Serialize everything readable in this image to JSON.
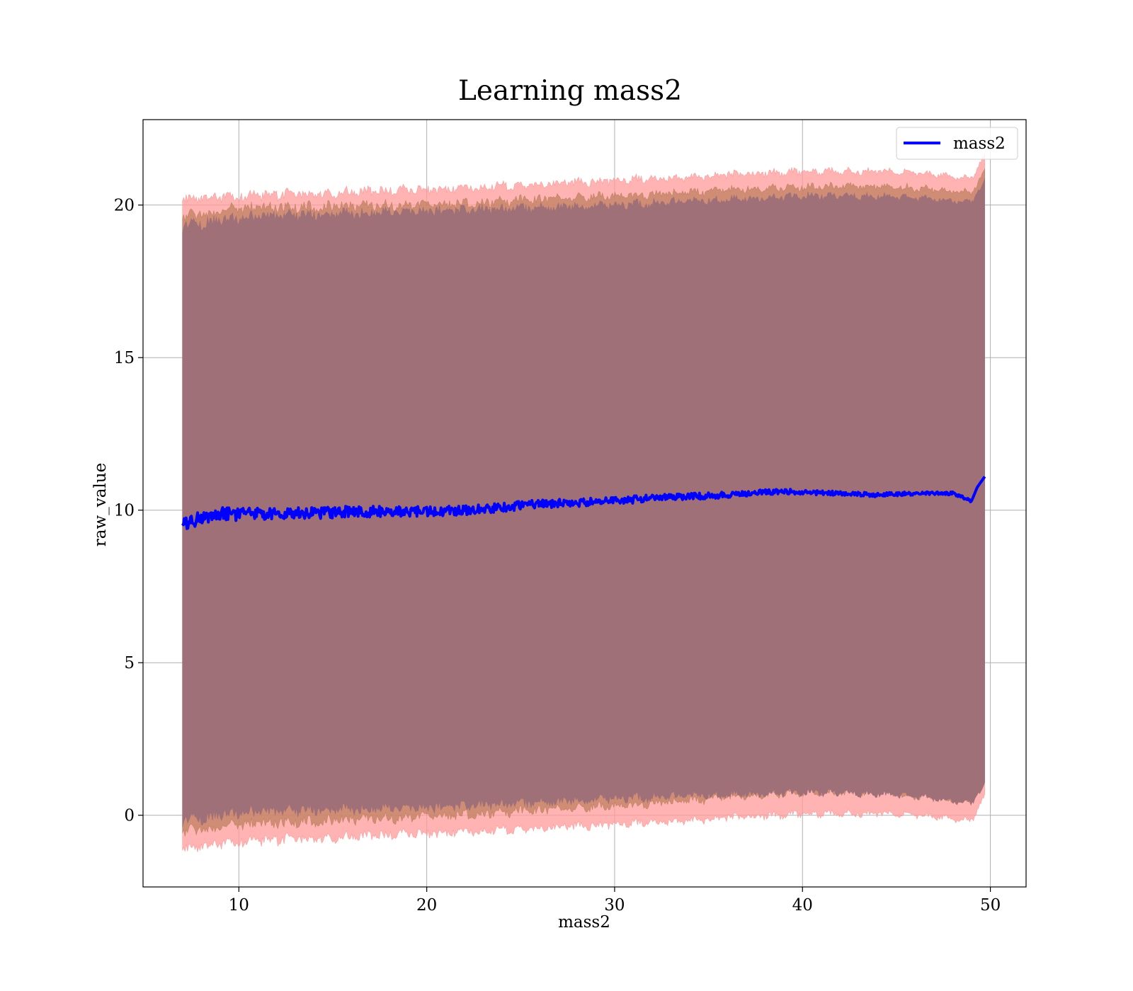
{
  "chart_data": {
    "type": "line",
    "title": "Learning mass2",
    "xlabel": "mass2",
    "ylabel": "raw_value",
    "xlim": [
      4.9,
      51.9
    ],
    "ylim": [
      -2.35,
      22.8
    ],
    "xticks": [
      10,
      20,
      30,
      40,
      50
    ],
    "yticks": [
      0,
      5,
      10,
      15,
      20
    ],
    "xtick_labels": [
      "10",
      "20",
      "30",
      "40",
      "50"
    ],
    "ytick_labels": [
      "0",
      "5",
      "10",
      "15",
      "20"
    ],
    "grid": true,
    "legend": {
      "placement": "top-right",
      "entries": [
        "mass2"
      ]
    },
    "series": [
      {
        "name": "mass2",
        "role": "mean line",
        "color": "#0000ff",
        "x": [
          7.0,
          8.0,
          9.0,
          10.0,
          12.0,
          14.0,
          16.0,
          18.0,
          20.0,
          22.0,
          24.0,
          26.0,
          28.0,
          30.0,
          32.0,
          34.0,
          36.0,
          38.0,
          40.0,
          42.0,
          44.0,
          46.0,
          48.0,
          49.0,
          49.3,
          49.7
        ],
        "y": [
          9.55,
          9.75,
          9.9,
          9.85,
          9.9,
          9.9,
          9.95,
          9.95,
          9.95,
          10.0,
          10.1,
          10.2,
          10.25,
          10.3,
          10.4,
          10.45,
          10.5,
          10.6,
          10.6,
          10.55,
          10.5,
          10.55,
          10.55,
          10.3,
          10.75,
          11.1
        ]
      }
    ],
    "bands": [
      {
        "role": "outer band",
        "color": "#ff9999",
        "x": [
          7.0,
          10.0,
          20.0,
          30.0,
          40.0,
          45.0,
          49.0,
          49.7
        ],
        "upper": [
          20.2,
          20.3,
          20.5,
          20.8,
          21.1,
          21.1,
          20.9,
          21.6
        ],
        "lower": [
          -1.1,
          -0.85,
          -0.6,
          -0.3,
          0.05,
          0.05,
          -0.15,
          0.6
        ]
      },
      {
        "role": "middle band",
        "color": "#c08060",
        "x": [
          7.0,
          10.0,
          20.0,
          30.0,
          40.0,
          45.0,
          49.0,
          49.7
        ],
        "upper": [
          19.6,
          19.9,
          20.0,
          20.3,
          20.6,
          20.6,
          20.4,
          21.1
        ],
        "lower": [
          -0.55,
          -0.3,
          -0.05,
          0.3,
          0.75,
          0.7,
          0.4,
          1.3
        ]
      },
      {
        "role": "inner band",
        "color": "#a07078",
        "x": [
          7.0,
          10.0,
          20.0,
          30.0,
          40.0,
          45.0,
          49.0,
          49.7
        ],
        "upper": [
          19.3,
          19.6,
          19.8,
          20.0,
          20.3,
          20.3,
          20.1,
          20.8
        ],
        "lower": [
          -0.2,
          0.1,
          0.25,
          0.55,
          0.75,
          0.7,
          0.4,
          1.0
        ]
      }
    ]
  }
}
